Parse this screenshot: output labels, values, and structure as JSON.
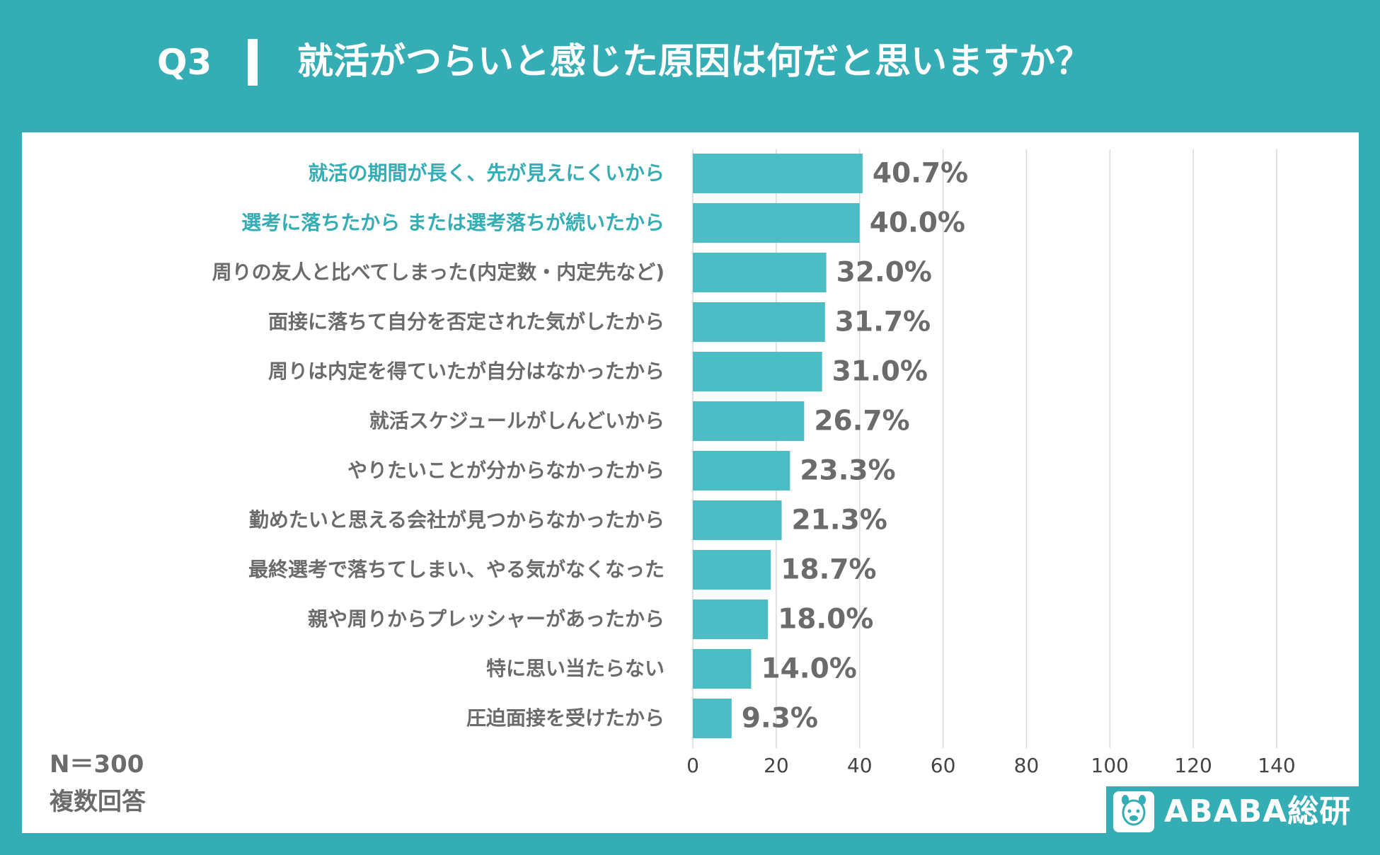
{
  "header": {
    "question_no": "Q3",
    "title": "就活がつらいと感じた原因は何だと思いますか？"
  },
  "footnote": {
    "sample": "N＝300",
    "multi": "複数回答"
  },
  "logo": {
    "text": "ABABA総研",
    "icon": "alpaca-icon"
  },
  "colors": {
    "background": "#35adb4",
    "bar": "#4cbcc5",
    "highlight_label": "#35adb4",
    "normal_label": "#6b6b6b",
    "value_label": "#6b6b6b",
    "grid": "#d9d9d9"
  },
  "chart_data": {
    "type": "bar",
    "orientation": "horizontal",
    "title": "就活がつらいと感じた原因は何だと思いますか？",
    "xlabel": "",
    "ylabel": "",
    "xlim": [
      0,
      140
    ],
    "xticks": [
      0,
      20,
      40,
      60,
      80,
      100,
      120,
      140
    ],
    "grid": true,
    "categories": [
      "就活の期間が長く、先が見えにくいから",
      "選考に落ちたから または選考落ちが続いたから",
      "周りの友人と比べてしまった(内定数・内定先など)",
      "面接に落ちて自分を否定された気がしたから",
      "周りは内定を得ていたが自分はなかったから",
      "就活スケジュールがしんどいから",
      "やりたいことが分からなかったから",
      "勤めたいと思える会社が見つからなかったから",
      "最終選考で落ちてしまい、やる気がなくなった",
      "親や周りからプレッシャーがあったから",
      "特に思い当たらない",
      "圧迫面接を受けたから"
    ],
    "values": [
      40.7,
      40.0,
      32.0,
      31.7,
      31.0,
      26.7,
      23.3,
      21.3,
      18.7,
      18.0,
      14.0,
      9.3
    ],
    "value_labels": [
      "40.7%",
      "40.0%",
      "32.0%",
      "31.7%",
      "31.0%",
      "26.7%",
      "23.3%",
      "21.3%",
      "18.7%",
      "18.0%",
      "14.0%",
      "9.3%"
    ],
    "highlighted": [
      true,
      true,
      false,
      false,
      false,
      false,
      false,
      false,
      false,
      false,
      false,
      false
    ]
  }
}
